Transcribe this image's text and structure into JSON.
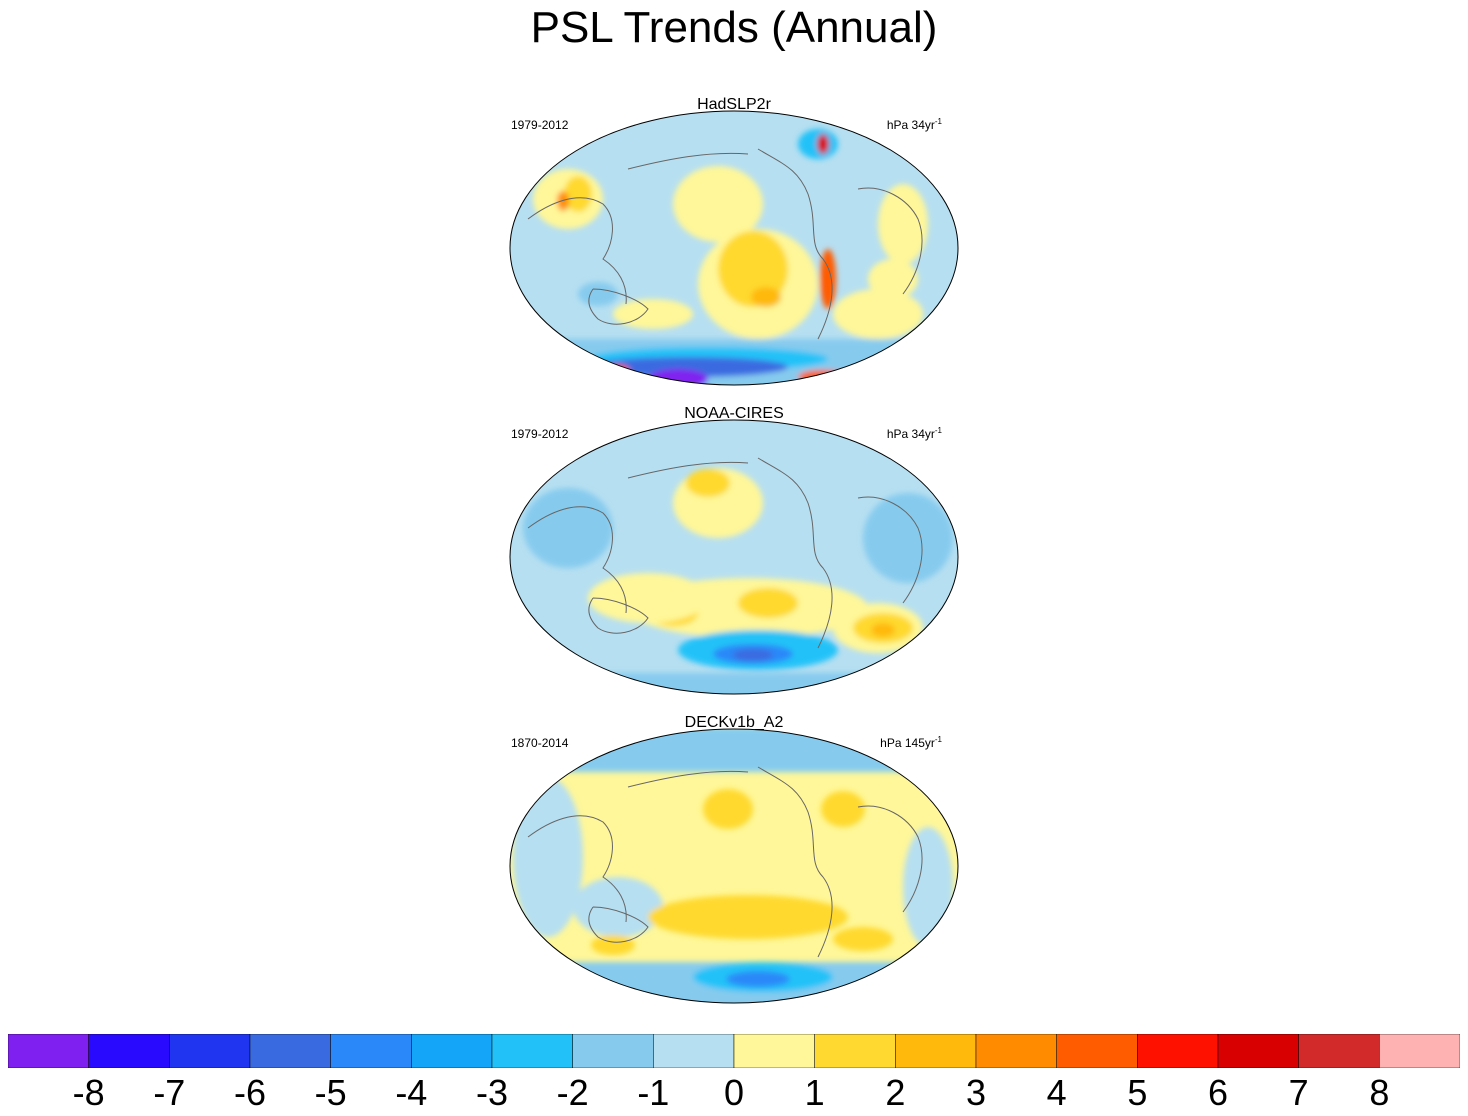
{
  "title": "PSL Trends (Annual)",
  "panels": [
    {
      "name": "HadSLP2r",
      "period": "1979-2012",
      "units_base": "hPa 34yr",
      "units_exp": "-1"
    },
    {
      "name": "NOAA-CIRES",
      "period": "1979-2012",
      "units_base": "hPa 34yr",
      "units_exp": "-1"
    },
    {
      "name": "DECKv1b_A2",
      "period": "1870-2014",
      "units_base": "hPa 145yr",
      "units_exp": "-1"
    }
  ],
  "colorbar": {
    "colors": [
      "#8020f0",
      "#2a0aff",
      "#1f35f0",
      "#3a6ae0",
      "#2a88f8",
      "#14a4f8",
      "#22c2f8",
      "#86cbee",
      "#b6dff1",
      "#fff799",
      "#ffd92f",
      "#ffb90d",
      "#ff8c00",
      "#ff5c00",
      "#ff1100",
      "#d80000",
      "#d22a2a",
      "#ffb2b2"
    ],
    "labels": [
      "-8",
      "-7",
      "-6",
      "-5",
      "-4",
      "-3",
      "-2",
      "-1",
      "0",
      "1",
      "2",
      "3",
      "4",
      "5",
      "6",
      "7",
      "8"
    ]
  }
}
